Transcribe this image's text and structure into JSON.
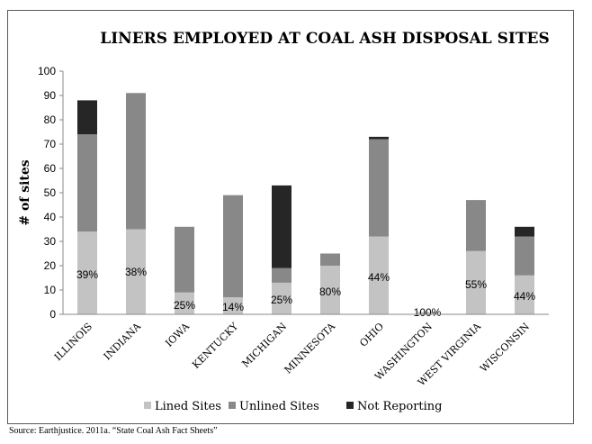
{
  "chart_data": {
    "type": "bar",
    "stacked": true,
    "title": "LINERS EMPLOYED AT COAL ASH DISPOSAL SITES",
    "ylabel": "# of sites",
    "xlabel": "",
    "ylim": [
      0,
      100
    ],
    "yticks": [
      0,
      10,
      20,
      30,
      40,
      50,
      60,
      70,
      80,
      90,
      100
    ],
    "grid": false,
    "legend_position": "bottom",
    "categories": [
      "ILLINOIS",
      "INDIANA",
      "IOWA",
      "KENTUCKY",
      "MICHIGAN",
      "MINNESOTA",
      "OHIO",
      "WASHINGTON",
      "WEST VIRGINIA",
      "WISCONSIN"
    ],
    "series": [
      {
        "name": "Lined Sites",
        "color": "#c3c3c3",
        "values": [
          34,
          35,
          9,
          7,
          13,
          20,
          32,
          1,
          26,
          16
        ]
      },
      {
        "name": "Unlined Sites",
        "color": "#888888",
        "values": [
          40,
          56,
          27,
          42,
          6,
          5,
          40,
          0,
          21,
          16
        ]
      },
      {
        "name": "Not Reporting",
        "color": "#262626",
        "values": [
          14,
          0,
          0,
          0,
          34,
          0,
          1,
          0,
          0,
          4
        ]
      }
    ],
    "data_labels": [
      "39%",
      "38%",
      "25%",
      "14%",
      "25%",
      "80%",
      "44%",
      "100%",
      "55%",
      "44%"
    ]
  },
  "source_text": "Source: Earthjustice. 2011a. “State Coal Ash Fact Sheets”"
}
